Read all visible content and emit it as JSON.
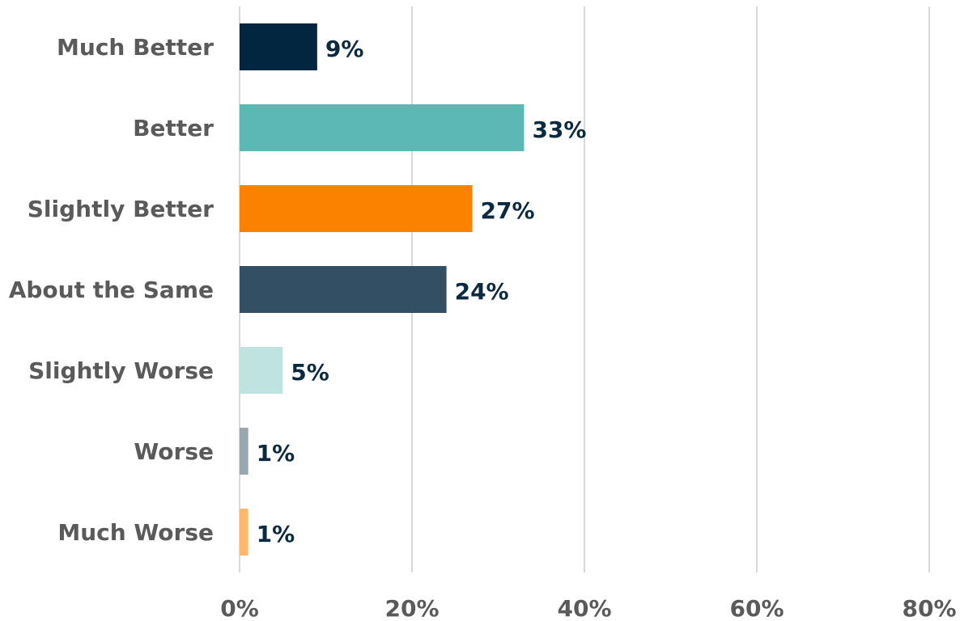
{
  "chart_data": {
    "type": "bar",
    "orientation": "horizontal",
    "title": "",
    "xlabel": "",
    "ylabel": "",
    "categories": [
      "Much Better",
      "Better",
      "Slightly Better",
      "About the Same",
      "Slightly Worse",
      "Worse",
      "Much Worse"
    ],
    "values": [
      9,
      33,
      27,
      24,
      5,
      1,
      1
    ],
    "value_labels": [
      "9%",
      "33%",
      "27%",
      "24%",
      "5%",
      "1%",
      "1%"
    ],
    "colors": [
      "#02263f",
      "#5bb8b3",
      "#fb8200",
      "#324f63",
      "#bfe3e1",
      "#99a7b0",
      "#fcb96c"
    ],
    "xlim": [
      0,
      80
    ],
    "x_ticks": [
      0,
      20,
      40,
      60,
      80
    ],
    "x_tick_labels": [
      "0%",
      "20%",
      "40%",
      "60%",
      "80%"
    ],
    "grid": "vertical",
    "legend": "none"
  }
}
